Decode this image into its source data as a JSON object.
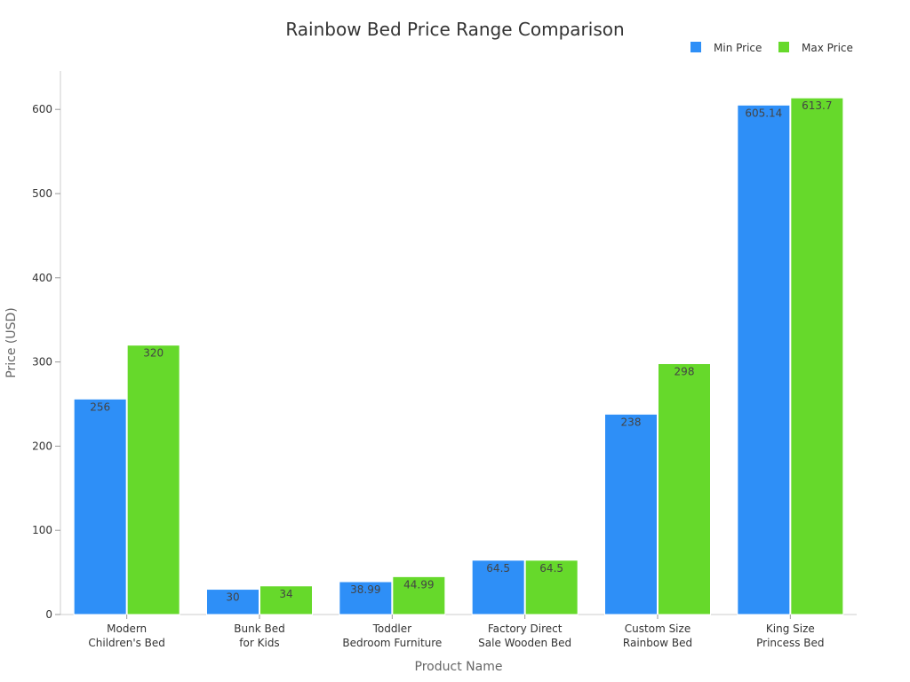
{
  "chart_data": {
    "type": "bar",
    "title": "Rainbow Bed Price Range Comparison",
    "xlabel": "Product Name",
    "ylabel": "Price (USD)",
    "ylim": [
      0,
      645
    ],
    "yticks": [
      0,
      100,
      200,
      300,
      400,
      500,
      600
    ],
    "grid": false,
    "legend_position": "top-right",
    "categories": [
      [
        "Modern",
        "Children's Bed"
      ],
      [
        "Bunk Bed",
        "for Kids"
      ],
      [
        "Toddler",
        "Bedroom Furniture"
      ],
      [
        "Factory Direct",
        "Sale Wooden Bed"
      ],
      [
        "Custom Size",
        "Rainbow Bed"
      ],
      [
        "King Size",
        "Princess Bed"
      ]
    ],
    "series": [
      {
        "name": "Min Price",
        "color": "#2e8ff7",
        "values": [
          256,
          30,
          38.99,
          64.5,
          238,
          605.14
        ]
      },
      {
        "name": "Max Price",
        "color": "#66d92b",
        "values": [
          320,
          34,
          44.99,
          64.5,
          298,
          613.7
        ]
      }
    ]
  }
}
